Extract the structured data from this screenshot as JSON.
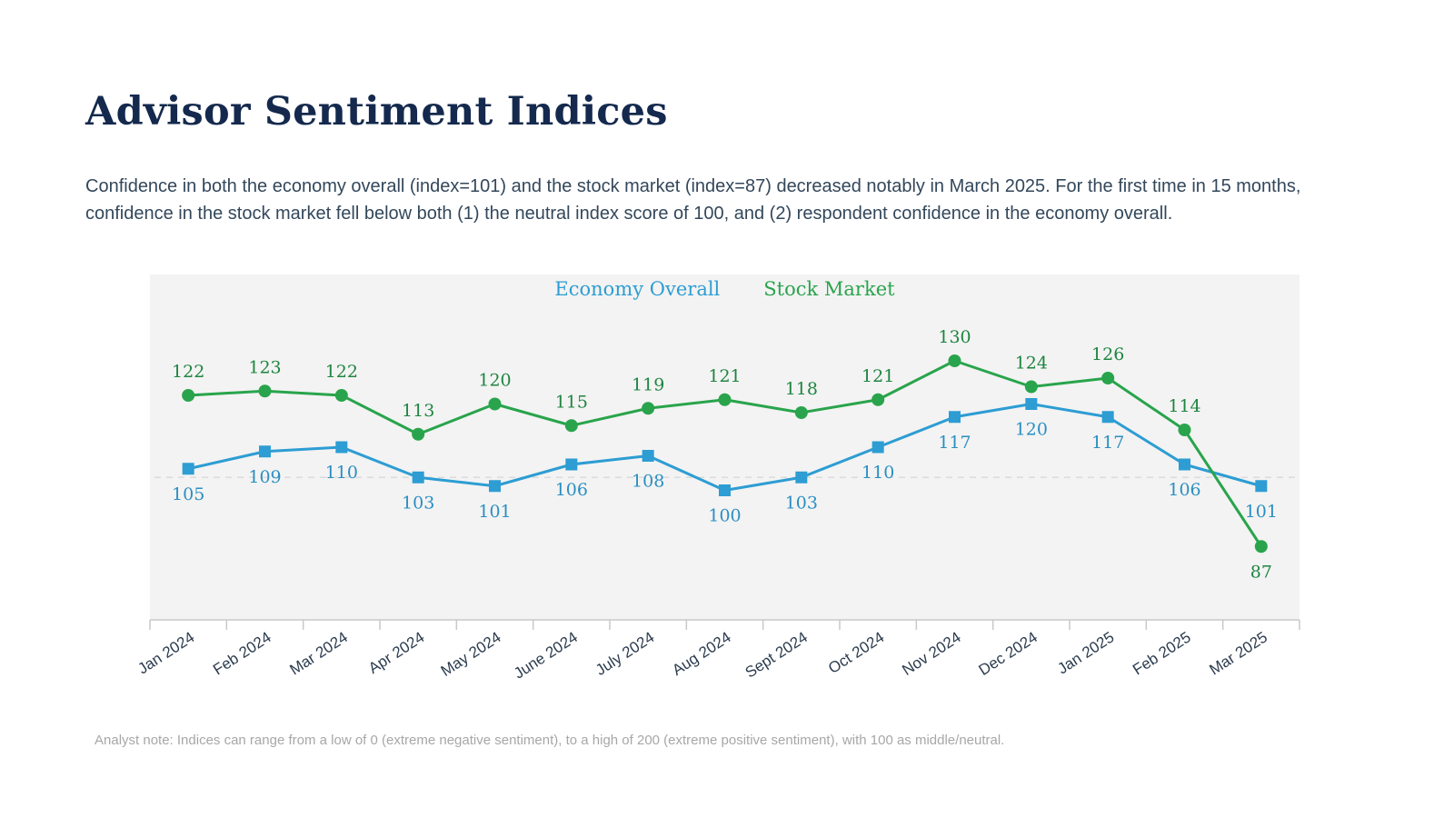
{
  "page": {
    "title": "Advisor Sentiment Indices",
    "description": "Confidence in both the economy overall (index=101) and the stock market (index=87) decreased notably in March 2025. For the first time in 15 months, confidence in the stock market fell below both (1) the neutral index score of 100, and (2) respondent confidence in the economy overall.",
    "footnote": "Analyst note: Indices can range from a low of 0 (extreme negative sentiment), to a high of 200 (extreme positive sentiment), with 100 as middle/neutral."
  },
  "chart_data": {
    "type": "line",
    "categories": [
      "Jan 2024",
      "Feb 2024",
      "Mar 2024",
      "Apr 2024",
      "May 2024",
      "June 2024",
      "July 2024",
      "Aug 2024",
      "Sept 2024",
      "Oct 2024",
      "Nov 2024",
      "Dec 2024",
      "Jan 2025",
      "Feb 2025",
      "Mar 2025"
    ],
    "series": [
      {
        "name": "Economy Overall",
        "color": "#2d9dd3",
        "label_color": "#2a8fc2",
        "marker": "square",
        "values": [
          105,
          109,
          110,
          103,
          101,
          106,
          108,
          100,
          103,
          110,
          117,
          120,
          117,
          106,
          101
        ],
        "label_position": "below",
        "label_position_overrides": {}
      },
      {
        "name": "Stock Market",
        "color": "#29a44c",
        "label_color": "#1f8540",
        "marker": "circle",
        "values": [
          122,
          123,
          122,
          113,
          120,
          115,
          119,
          121,
          118,
          121,
          130,
          124,
          126,
          114,
          87
        ],
        "label_position": "above",
        "label_position_overrides": {
          "14": "below"
        }
      }
    ],
    "ylim": [
      70,
      150
    ],
    "xlabel": "",
    "ylabel": "",
    "y_axis_labels_shown": false,
    "reference_line": {
      "style": "dashed",
      "approx_value": 103
    },
    "legend_position": "top-center",
    "plot_background": "#f3f3f3",
    "axis_color": "#c9c9c9",
    "reference_line_color": "#dbdbdb"
  }
}
